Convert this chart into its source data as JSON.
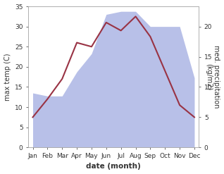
{
  "months": [
    "Jan",
    "Feb",
    "Mar",
    "Apr",
    "May",
    "Jun",
    "Jul",
    "Aug",
    "Sep",
    "Oct",
    "Nov",
    "Dec"
  ],
  "temp": [
    7.5,
    12.0,
    17.0,
    26.0,
    25.0,
    31.0,
    29.0,
    32.5,
    27.5,
    19.0,
    10.5,
    7.5
  ],
  "precip": [
    9.0,
    8.5,
    8.5,
    12.5,
    15.5,
    22.0,
    22.5,
    22.5,
    20.0,
    20.0,
    20.0,
    11.5
  ],
  "temp_color": "#993344",
  "precip_fill_color": "#b8c0e8",
  "temp_ylim": [
    0,
    35
  ],
  "precip_ylim": [
    0,
    23.33
  ],
  "right_yticks": [
    0,
    5,
    10,
    15,
    20
  ],
  "left_yticks": [
    0,
    5,
    10,
    15,
    20,
    25,
    30,
    35
  ],
  "xlabel": "date (month)",
  "ylabel_left": "max temp (C)",
  "ylabel_right": "med. precipitation\n(kg/m2)",
  "bg_color": "#ffffff",
  "label_fontsize": 7,
  "tick_fontsize": 6.5
}
